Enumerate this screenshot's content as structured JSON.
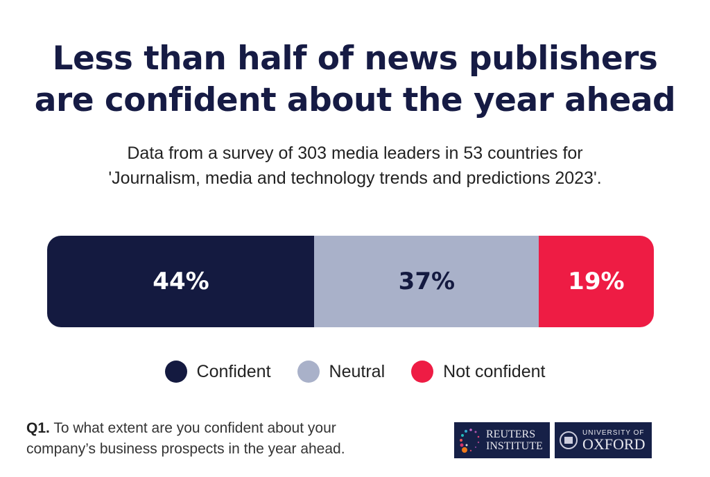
{
  "chart_data": {
    "type": "bar",
    "stacked": true,
    "orientation": "horizontal",
    "title": "Less than half of news publishers are confident about the year ahead",
    "subtitle": "Data from a survey of 303 media leaders in 53 countries for 'Journalism, media and technology trends and predictions 2023'.",
    "categories": [
      "Confident",
      "Neutral",
      "Not confident"
    ],
    "values": [
      44,
      37,
      19
    ],
    "labels": [
      "44%",
      "37%",
      "19%"
    ],
    "colors": [
      "#141a40",
      "#a9b1c9",
      "#ee1c44"
    ],
    "label_colors": [
      "#ffffff",
      "#141a40",
      "#ffffff"
    ],
    "legend_position": "bottom",
    "xlim": [
      0,
      100
    ]
  },
  "title_lines": [
    "Less than half of news publishers",
    "are confident about the year ahead"
  ],
  "subtitle_lines": [
    "Data from a survey of 303 media leaders in 53 countries for",
    "'Journalism, media and technology trends and predictions 2023'."
  ],
  "footnote": {
    "label": "Q1.",
    "text_line1": " To what extent are you confident about your",
    "text_line2": "company’s business prospects in the year ahead."
  },
  "logos": {
    "reuters": {
      "line1": "REUTERS",
      "line2": "INSTITUTE"
    },
    "oxford": {
      "line1": "UNIVERSITY OF",
      "line2": "OXFORD"
    }
  }
}
